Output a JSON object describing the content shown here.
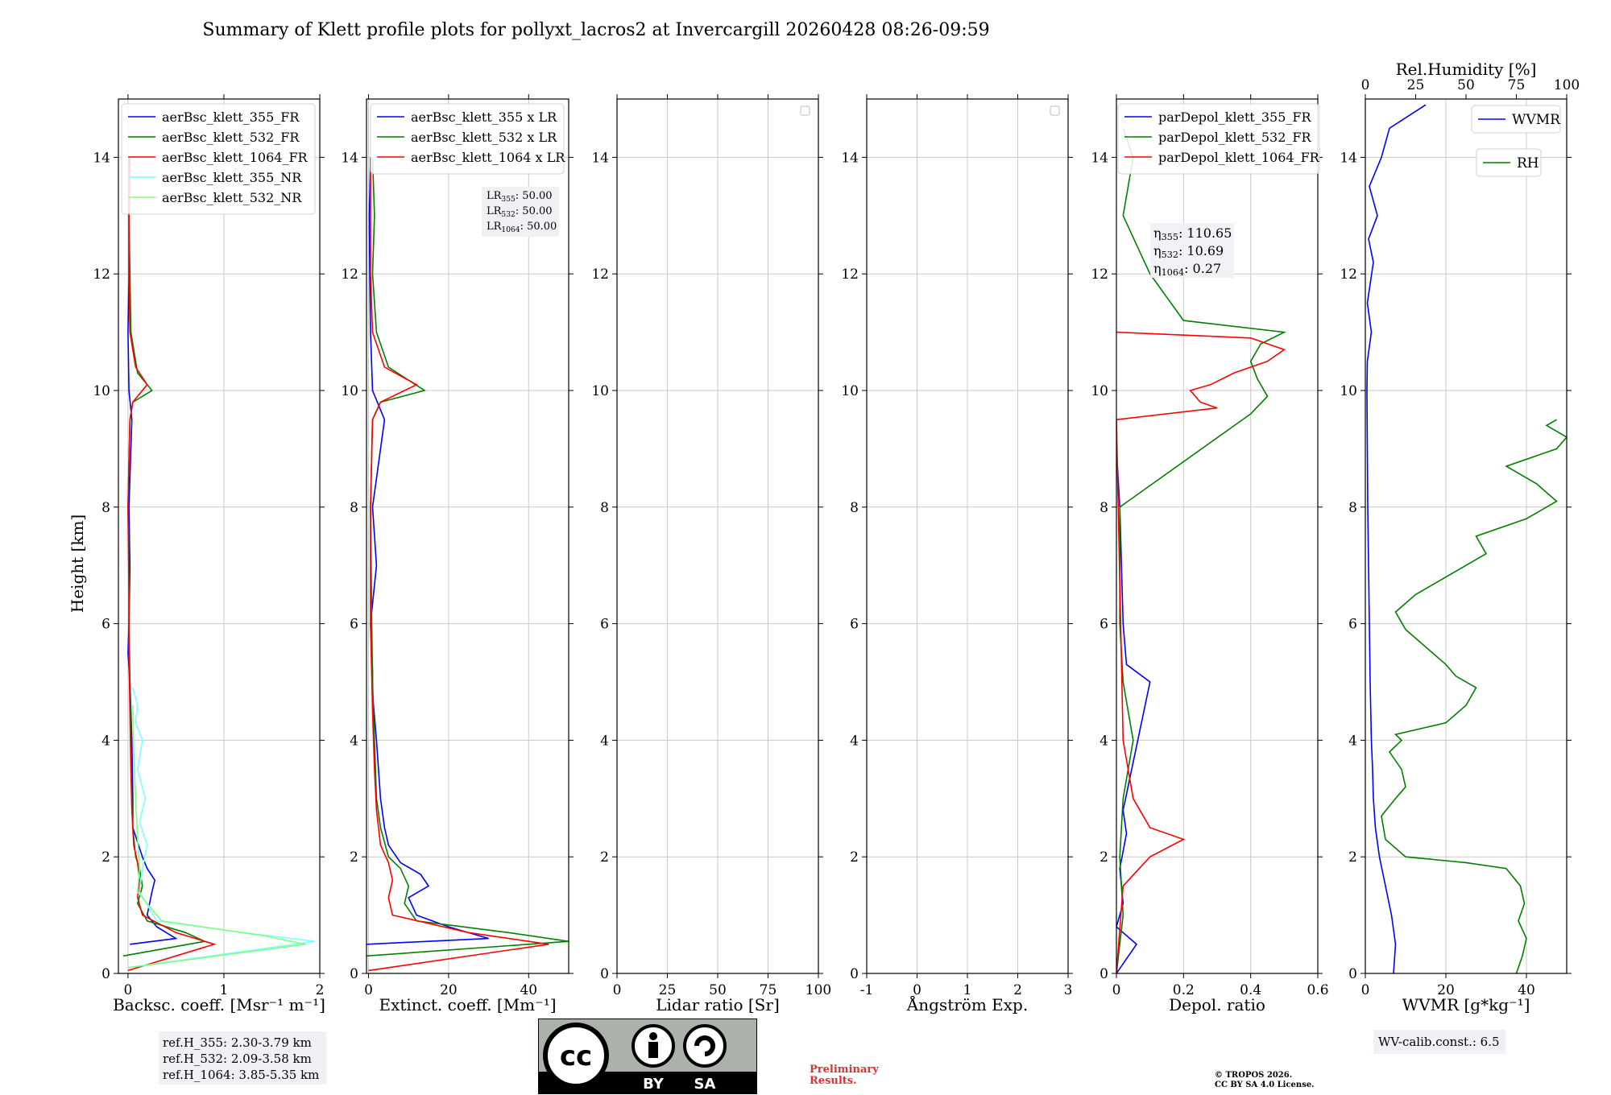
{
  "title": "Summary of Klett profile plots for pollyxt_lacros2 at Invercargill 20260428 08:26-09:59",
  "y_label": "Height [km]",
  "colors": {
    "c355": "#0000ff",
    "c532": "#008000",
    "c1064": "#ff0000",
    "c355nr": "#7fffff",
    "c532nr": "#7fff7f",
    "grid": "#c8c8c8",
    "box": "#f0f1f4"
  },
  "annotations": {
    "lr": [
      "LR355: 50.00",
      "LR532: 50.00",
      "LR1064: 50.00"
    ],
    "eta": [
      "η355: 110.65",
      "η532: 10.69",
      "η1064: 0.27"
    ],
    "ref_h": [
      "ref.H_355: 2.30-3.79 km",
      "ref.H_532: 2.09-3.58 km",
      "ref.H_1064: 3.85-5.35 km"
    ],
    "wv_calib": "WV-calib.const.: 6.5",
    "preliminary": [
      "Preliminary",
      "Results."
    ],
    "copyright": [
      "© TROPOS 2026.",
      "CC BY SA 4.0 License."
    ],
    "cc_badge": [
      "cc",
      "BY",
      "SA"
    ]
  },
  "chart_data": [
    {
      "type": "line",
      "xlabel": "Backsc. coeff. [Msr⁻¹ m⁻¹]",
      "ylabel": "Height [km]",
      "xlim": [
        -0.1,
        2.0
      ],
      "ylim": [
        0,
        15
      ],
      "xticks": [
        0,
        1,
        2
      ],
      "yticks": [
        0,
        2,
        4,
        6,
        8,
        10,
        12,
        14
      ],
      "grid": true,
      "legend_position": "upper-right",
      "series": [
        {
          "name": "aerBsc_klett_355_FR",
          "color": "#0000ff",
          "x": [
            0.02,
            0.5,
            0.3,
            0.2,
            0.25,
            0.28,
            0.2,
            0.15,
            0.05,
            0.05,
            0.04,
            0.03,
            0.02,
            0.0,
            0.01,
            0.02,
            0.01,
            0.04,
            0.01,
            0.0,
            0.01,
            0.01,
            0.02
          ],
          "y": [
            0.5,
            0.6,
            0.8,
            1.0,
            1.4,
            1.6,
            1.8,
            2.0,
            2.5,
            3.0,
            4.0,
            4.5,
            5.0,
            5.5,
            6.0,
            7.0,
            8.0,
            9.5,
            10.0,
            11.0,
            12.0,
            13.0,
            14.0
          ]
        },
        {
          "name": "aerBsc_klett_532_FR",
          "color": "#008000",
          "x": [
            -0.05,
            0.8,
            0.6,
            0.2,
            0.1,
            0.15,
            0.12,
            0.08,
            0.05,
            0.04,
            0.03,
            0.02,
            0.01,
            0.01,
            0.0,
            0.02,
            0.05,
            0.25,
            0.1,
            0.03,
            0.02,
            0.01,
            0.02
          ],
          "y": [
            0.3,
            0.55,
            0.7,
            0.9,
            1.2,
            1.5,
            1.8,
            2.0,
            2.5,
            3.0,
            4.0,
            5.0,
            6.0,
            7.0,
            8.0,
            9.5,
            9.8,
            10.0,
            10.3,
            11.0,
            12.0,
            13.0,
            14.0
          ]
        },
        {
          "name": "aerBsc_klett_1064_FR",
          "color": "#ff0000",
          "x": [
            0.0,
            0.9,
            0.5,
            0.15,
            0.1,
            0.12,
            0.1,
            0.06,
            0.04,
            0.03,
            0.02,
            0.01,
            0.01,
            0.0,
            0.02,
            0.05,
            0.2,
            0.08,
            0.02,
            0.01,
            0.01,
            0.01
          ],
          "y": [
            0.05,
            0.5,
            0.7,
            1.0,
            1.3,
            1.6,
            1.9,
            2.2,
            2.8,
            3.5,
            4.5,
            5.5,
            6.5,
            8.0,
            9.5,
            9.8,
            10.1,
            10.4,
            11.0,
            12.0,
            13.0,
            14.0
          ]
        },
        {
          "name": "aerBsc_klett_355_NR",
          "color": "#7fffff",
          "x": [
            0.0,
            1.95,
            1.2,
            0.3,
            0.12,
            0.15,
            0.2,
            0.12,
            0.18,
            0.1,
            0.15,
            0.08,
            0.1,
            0.05
          ],
          "y": [
            0.1,
            0.55,
            0.7,
            0.9,
            1.4,
            1.8,
            2.2,
            2.6,
            3.0,
            3.5,
            4.0,
            4.3,
            4.6,
            4.9
          ]
        },
        {
          "name": "aerBsc_klett_532_NR",
          "color": "#7fff7f",
          "x": [
            0.0,
            1.85,
            1.4,
            0.35,
            0.1,
            0.12,
            0.1,
            0.08,
            0.06,
            0.05
          ],
          "y": [
            0.1,
            0.5,
            0.65,
            0.9,
            1.4,
            1.8,
            2.3,
            3.0,
            3.8,
            4.6
          ]
        }
      ]
    },
    {
      "type": "line",
      "xlabel": "Extinct. coeff. [Mm⁻¹]",
      "ylabel": "",
      "xlim": [
        -0.5,
        50
      ],
      "ylim": [
        0,
        15
      ],
      "xticks": [
        0,
        20,
        40
      ],
      "yticks": [
        0,
        2,
        4,
        6,
        8,
        10,
        12,
        14
      ],
      "grid": true,
      "legend_position": "upper-right",
      "series": [
        {
          "name": "aerBsc_klett_355 x LR",
          "color": "#0000ff",
          "x": [
            -0.5,
            30,
            20,
            12,
            10,
            15,
            13,
            8,
            5,
            4,
            3,
            2,
            1,
            1,
            0.5,
            2,
            1,
            4,
            1,
            0.5,
            0.3,
            0.2,
            0.5
          ],
          "y": [
            0.5,
            0.6,
            0.8,
            1.0,
            1.3,
            1.5,
            1.7,
            1.9,
            2.2,
            2.5,
            3.0,
            4.0,
            4.8,
            5.2,
            6.0,
            7.0,
            8.0,
            9.5,
            10.0,
            11.0,
            12.0,
            13.0,
            14.0
          ]
        },
        {
          "name": "aerBsc_klett_532 x LR",
          "color": "#008000",
          "x": [
            -0.5,
            50,
            35,
            12,
            9,
            10,
            8,
            5,
            3,
            2,
            1.5,
            1,
            0.8,
            0.5,
            1,
            3,
            14,
            5,
            2,
            1,
            1.5,
            1
          ],
          "y": [
            0.3,
            0.55,
            0.7,
            0.9,
            1.2,
            1.5,
            1.8,
            2.0,
            2.5,
            3.0,
            4.0,
            5.0,
            6.0,
            8.0,
            9.5,
            9.8,
            10.0,
            10.4,
            11.0,
            12.0,
            13.0,
            14.0
          ]
        },
        {
          "name": "aerBsc_klett_1064 x LR",
          "color": "#ff0000",
          "x": [
            0.0,
            45,
            25,
            6,
            5,
            6,
            5,
            3,
            2,
            1.5,
            1,
            0.5,
            0.5,
            1,
            3,
            12,
            4,
            1,
            0.5,
            0.5,
            0.5
          ],
          "y": [
            0.05,
            0.5,
            0.7,
            1.0,
            1.3,
            1.6,
            1.9,
            2.2,
            2.8,
            3.5,
            4.5,
            6.0,
            8.0,
            9.5,
            9.8,
            10.1,
            10.4,
            11.0,
            12.0,
            13.0,
            14.0
          ]
        }
      ]
    },
    {
      "type": "line",
      "xlabel": "Lidar ratio [Sr]",
      "ylabel": "",
      "xlim": [
        0,
        100
      ],
      "ylim": [
        0,
        15
      ],
      "xticks": [
        0,
        25,
        50,
        75,
        100
      ],
      "yticks": [
        0,
        2,
        4,
        6,
        8,
        10,
        12,
        14
      ],
      "grid": true,
      "legend_position": "upper-right",
      "series": []
    },
    {
      "type": "line",
      "xlabel": "Ångström Exp.",
      "ylabel": "",
      "xlim": [
        -1,
        3
      ],
      "ylim": [
        0,
        15
      ],
      "xticks": [
        -1,
        0,
        1,
        2,
        3
      ],
      "yticks": [
        0,
        2,
        4,
        6,
        8,
        10,
        12,
        14
      ],
      "grid": true,
      "legend_position": "upper-right",
      "series": []
    },
    {
      "type": "line",
      "xlabel": "Depol. ratio",
      "ylabel": "",
      "xlim": [
        0,
        0.6
      ],
      "ylim": [
        0,
        15
      ],
      "xticks": [
        0.0,
        0.2,
        0.4,
        0.6
      ],
      "yticks": [
        0,
        2,
        4,
        6,
        8,
        10,
        12,
        14
      ],
      "grid": true,
      "legend_position": "upper-left",
      "series": [
        {
          "name": "parDepol_klett_355_FR",
          "color": "#0000ff",
          "x": [
            0.0,
            0.06,
            0.0,
            0.02,
            0.01,
            0.03,
            0.02,
            0.1,
            0.03,
            0.02,
            0.01,
            0.0
          ],
          "y": [
            0.0,
            0.5,
            0.8,
            1.2,
            1.8,
            2.4,
            2.8,
            5.0,
            5.3,
            6.0,
            8.0,
            9.0
          ]
        },
        {
          "name": "parDepol_klett_532_FR",
          "color": "#008000",
          "x": [
            0.0,
            0.02,
            0.01,
            0.02,
            0.05,
            0.02,
            0.01,
            0.01,
            0.4,
            0.45,
            0.42,
            0.4,
            0.43,
            0.5,
            0.2,
            0.1,
            0.02,
            0.05,
            0.02
          ],
          "y": [
            0.0,
            1.0,
            2.0,
            3.0,
            4.0,
            5.0,
            6.0,
            8.0,
            9.6,
            9.9,
            10.2,
            10.5,
            10.8,
            11.0,
            11.2,
            12.0,
            13.0,
            14.0,
            14.5
          ]
        },
        {
          "name": "parDepol_klett_1064_FR",
          "color": "#ff0000",
          "x": [
            0.0,
            0.02,
            0.1,
            0.2,
            0.1,
            0.05,
            0.02,
            0.0,
            0.3,
            0.25,
            0.22,
            0.28,
            0.35,
            0.45,
            0.5,
            0.4,
            0.0
          ],
          "y": [
            0.0,
            1.5,
            2.0,
            2.3,
            2.5,
            3.0,
            4.0,
            9.5,
            9.7,
            9.8,
            10.0,
            10.1,
            10.3,
            10.5,
            10.7,
            10.9,
            11.0
          ]
        }
      ]
    },
    {
      "type": "line",
      "xlabel": "WVMR [g*kg⁻¹]",
      "ylabel": "",
      "x2label": "Rel.Humidity [%]",
      "xlim": [
        0,
        50
      ],
      "x2lim": [
        0,
        100
      ],
      "ylim": [
        0,
        15
      ],
      "xticks": [
        0,
        20,
        40
      ],
      "x2ticks": [
        0,
        25,
        50,
        75,
        100
      ],
      "yticks": [
        0,
        2,
        4,
        6,
        8,
        10,
        12,
        14
      ],
      "grid": true,
      "legend_position": "upper-right",
      "series": [
        {
          "name": "WVMR",
          "axis": "bottom",
          "color": "#0000ff",
          "x": [
            7.0,
            7.5,
            6.5,
            5.0,
            3.5,
            2.5,
            2.0,
            1.8,
            1.5,
            1.2,
            1.0,
            0.8,
            0.6,
            0.5,
            0.4,
            0.5,
            1.5,
            0.5,
            2.0,
            0.8,
            3.0,
            1.0,
            4.0,
            6.0,
            15.0
          ],
          "y": [
            0.0,
            0.5,
            1.0,
            1.5,
            2.0,
            2.5,
            3.0,
            3.5,
            4.0,
            5.0,
            6.0,
            7.0,
            8.0,
            9.0,
            10.0,
            10.5,
            11.0,
            11.5,
            12.2,
            12.6,
            13.0,
            13.5,
            14.0,
            14.5,
            14.9
          ]
        },
        {
          "name": "RH",
          "axis": "top",
          "color": "#008000",
          "x": [
            75,
            78,
            80,
            76,
            79,
            77,
            70,
            50,
            20,
            10,
            8,
            15,
            20,
            18,
            12,
            18,
            15,
            40,
            50,
            55,
            45,
            40,
            30,
            20,
            15,
            25,
            40,
            60,
            55,
            80,
            95,
            85,
            70,
            95,
            100,
            90,
            95
          ],
          "y": [
            0.0,
            0.3,
            0.6,
            0.9,
            1.2,
            1.5,
            1.8,
            1.9,
            2.0,
            2.3,
            2.7,
            3.0,
            3.2,
            3.5,
            3.8,
            4.0,
            4.1,
            4.3,
            4.6,
            4.9,
            5.1,
            5.3,
            5.6,
            5.9,
            6.2,
            6.5,
            6.8,
            7.2,
            7.5,
            7.8,
            8.1,
            8.4,
            8.7,
            9.0,
            9.2,
            9.4,
            9.5
          ]
        }
      ]
    }
  ]
}
